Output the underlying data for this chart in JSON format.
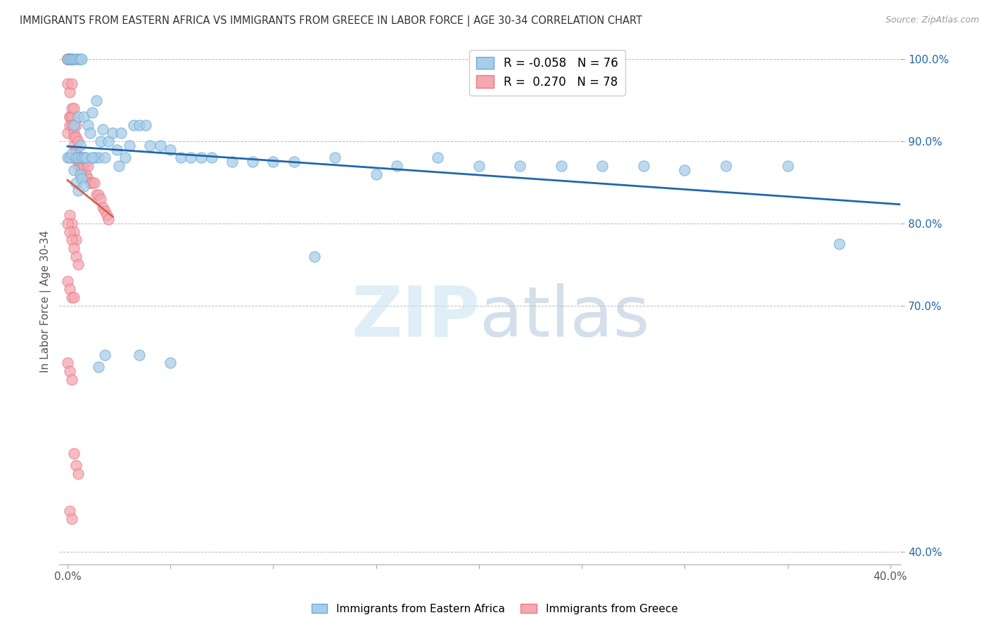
{
  "title": "IMMIGRANTS FROM EASTERN AFRICA VS IMMIGRANTS FROM GREECE IN LABOR FORCE | AGE 30-34 CORRELATION CHART",
  "source": "Source: ZipAtlas.com",
  "ylabel": "In Labor Force | Age 30-34",
  "xlim": [
    -0.004,
    0.405
  ],
  "ylim": [
    0.385,
    1.025
  ],
  "r_blue": -0.058,
  "n_blue": 76,
  "r_pink": 0.27,
  "n_pink": 78,
  "legend_label_blue": "Immigrants from Eastern Africa",
  "legend_label_pink": "Immigrants from Greece",
  "blue_color": "#a8cde8",
  "pink_color": "#f4a8b0",
  "blue_edge_color": "#6aabd6",
  "pink_edge_color": "#e87a8a",
  "blue_line_color": "#2166ac",
  "pink_line_color": "#d6604d",
  "watermark_color": "#daeef8",
  "ytick_vals": [
    1.0,
    0.9,
    0.8,
    0.7,
    0.4
  ],
  "blue_scatter_x": [
    0.0,
    0.0,
    0.001,
    0.001,
    0.002,
    0.002,
    0.002,
    0.003,
    0.003,
    0.004,
    0.004,
    0.005,
    0.005,
    0.005,
    0.006,
    0.006,
    0.007,
    0.007,
    0.008,
    0.008,
    0.009,
    0.01,
    0.011,
    0.012,
    0.013,
    0.014,
    0.015,
    0.016,
    0.017,
    0.018,
    0.02,
    0.022,
    0.024,
    0.026,
    0.028,
    0.03,
    0.032,
    0.035,
    0.038,
    0.04,
    0.045,
    0.05,
    0.055,
    0.06,
    0.065,
    0.07,
    0.08,
    0.09,
    0.1,
    0.11,
    0.12,
    0.13,
    0.15,
    0.16,
    0.18,
    0.2,
    0.22,
    0.24,
    0.26,
    0.28,
    0.3,
    0.32,
    0.35,
    0.375,
    0.003,
    0.004,
    0.005,
    0.006,
    0.007,
    0.008,
    0.012,
    0.015,
    0.018,
    0.025,
    0.035,
    0.05
  ],
  "blue_scatter_y": [
    1.0,
    0.88,
    1.0,
    0.88,
    1.0,
    1.0,
    0.885,
    1.0,
    0.92,
    1.0,
    0.88,
    1.0,
    0.93,
    0.88,
    1.0,
    0.895,
    1.0,
    0.88,
    0.93,
    0.88,
    0.88,
    0.92,
    0.91,
    0.935,
    0.88,
    0.95,
    0.88,
    0.9,
    0.915,
    0.88,
    0.9,
    0.91,
    0.89,
    0.91,
    0.88,
    0.895,
    0.92,
    0.92,
    0.92,
    0.895,
    0.895,
    0.89,
    0.88,
    0.88,
    0.88,
    0.88,
    0.875,
    0.875,
    0.875,
    0.875,
    0.76,
    0.88,
    0.86,
    0.87,
    0.88,
    0.87,
    0.87,
    0.87,
    0.87,
    0.87,
    0.865,
    0.87,
    0.87,
    0.775,
    0.865,
    0.85,
    0.84,
    0.86,
    0.855,
    0.845,
    0.88,
    0.625,
    0.64,
    0.87,
    0.64,
    0.63
  ],
  "pink_scatter_x": [
    0.0,
    0.0,
    0.0,
    0.0,
    0.0,
    0.0,
    0.0,
    0.0,
    0.001,
    0.001,
    0.001,
    0.001,
    0.001,
    0.001,
    0.001,
    0.001,
    0.002,
    0.002,
    0.002,
    0.002,
    0.002,
    0.002,
    0.003,
    0.003,
    0.003,
    0.003,
    0.003,
    0.004,
    0.004,
    0.004,
    0.005,
    0.005,
    0.005,
    0.005,
    0.006,
    0.006,
    0.006,
    0.007,
    0.007,
    0.007,
    0.008,
    0.008,
    0.009,
    0.009,
    0.01,
    0.01,
    0.011,
    0.012,
    0.013,
    0.014,
    0.015,
    0.016,
    0.017,
    0.018,
    0.019,
    0.02,
    0.001,
    0.002,
    0.003,
    0.004,
    0.0,
    0.001,
    0.002,
    0.003,
    0.004,
    0.005,
    0.0,
    0.001,
    0.002,
    0.003,
    0.0,
    0.001,
    0.002,
    0.003,
    0.004,
    0.005,
    0.001,
    0.002
  ],
  "pink_scatter_y": [
    1.0,
    1.0,
    1.0,
    1.0,
    1.0,
    1.0,
    0.97,
    0.91,
    1.0,
    1.0,
    1.0,
    1.0,
    0.96,
    0.93,
    0.93,
    0.92,
    1.0,
    0.97,
    0.94,
    0.93,
    0.92,
    0.88,
    0.94,
    0.92,
    0.91,
    0.905,
    0.895,
    0.92,
    0.905,
    0.89,
    0.9,
    0.88,
    0.875,
    0.87,
    0.88,
    0.875,
    0.87,
    0.875,
    0.87,
    0.86,
    0.88,
    0.87,
    0.875,
    0.86,
    0.87,
    0.855,
    0.85,
    0.85,
    0.85,
    0.835,
    0.835,
    0.83,
    0.82,
    0.815,
    0.81,
    0.805,
    0.81,
    0.8,
    0.79,
    0.78,
    0.8,
    0.79,
    0.78,
    0.77,
    0.76,
    0.75,
    0.73,
    0.72,
    0.71,
    0.71,
    0.63,
    0.62,
    0.61,
    0.52,
    0.505,
    0.495,
    0.45,
    0.44
  ]
}
